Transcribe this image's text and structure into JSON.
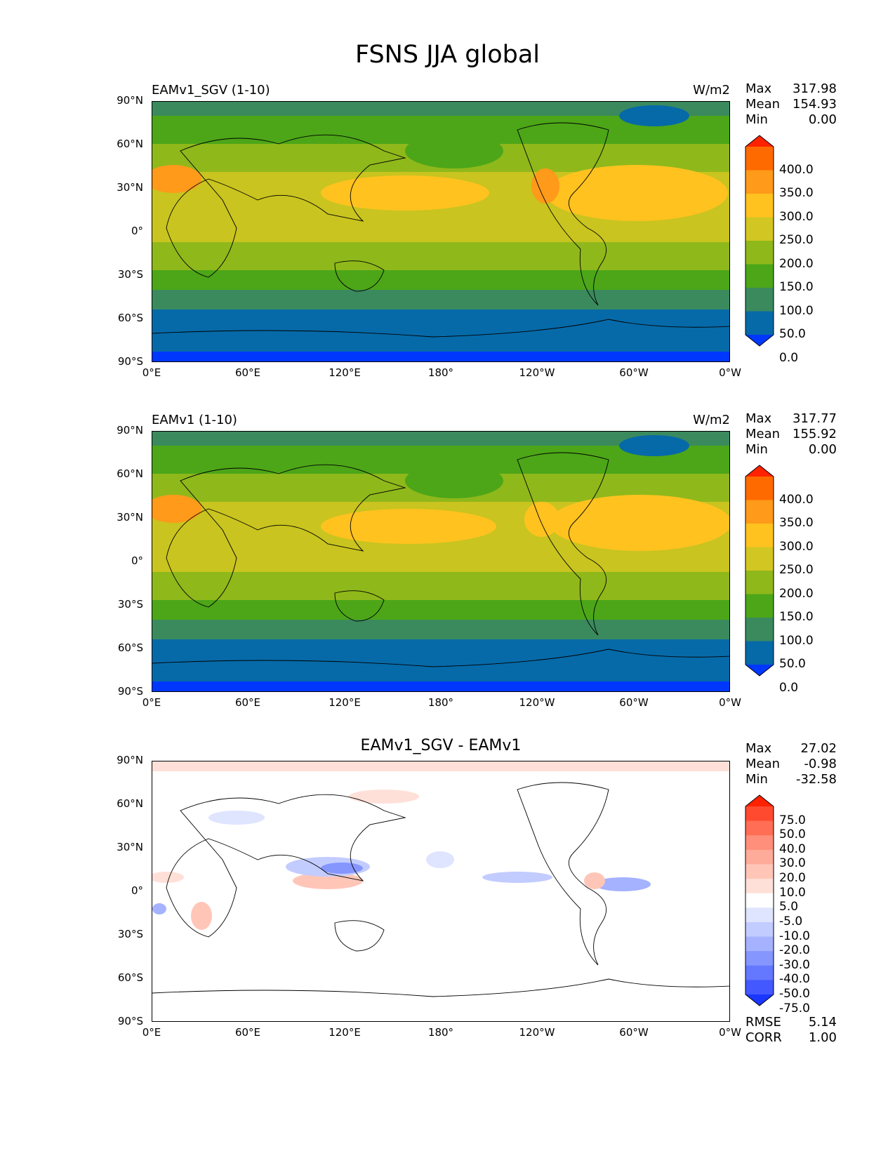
{
  "figure": {
    "title": "FSNS JJA global"
  },
  "axes": {
    "yticks": [
      "90°N",
      "60°N",
      "30°N",
      "0°",
      "30°S",
      "60°S",
      "90°S"
    ],
    "xticks": [
      "0°E",
      "60°E",
      "120°E",
      "180°",
      "120°W",
      "60°W",
      "0°W"
    ]
  },
  "panels": [
    {
      "title": "EAMv1_SGV (1-10)",
      "units": "W/m2",
      "stats": [
        {
          "label": "Max",
          "value": "317.98"
        },
        {
          "label": "Mean",
          "value": "154.93"
        },
        {
          "label": "Min",
          "value": "0.00"
        }
      ],
      "colorbar": {
        "labels": [
          "400.0",
          "350.0",
          "300.0",
          "250.0",
          "200.0",
          "150.0",
          "100.0",
          "50.0",
          "0.0"
        ],
        "colors": [
          "#ff2200",
          "#ff6a00",
          "#ff9a1a",
          "#ffc21f",
          "#d2c622",
          "#8fb81b",
          "#4ca618",
          "#3a8a5e",
          "#066aa8",
          "#0037ff"
        ]
      },
      "bottom_stats": []
    },
    {
      "title": "EAMv1 (1-10)",
      "units": "W/m2",
      "stats": [
        {
          "label": "Max",
          "value": "317.77"
        },
        {
          "label": "Mean",
          "value": "155.92"
        },
        {
          "label": "Min",
          "value": "0.00"
        }
      ],
      "colorbar": {
        "labels": [
          "400.0",
          "350.0",
          "300.0",
          "250.0",
          "200.0",
          "150.0",
          "100.0",
          "50.0",
          "0.0"
        ],
        "colors": [
          "#ff2200",
          "#ff6a00",
          "#ff9a1a",
          "#ffc21f",
          "#d2c622",
          "#8fb81b",
          "#4ca618",
          "#3a8a5e",
          "#066aa8",
          "#0037ff"
        ]
      },
      "bottom_stats": []
    },
    {
      "title": "EAMv1_SGV - EAMv1",
      "units": "",
      "stats": [
        {
          "label": "Max",
          "value": "27.02"
        },
        {
          "label": "Mean",
          "value": "-0.98"
        },
        {
          "label": "Min",
          "value": "-32.58"
        }
      ],
      "colorbar": {
        "labels": [
          "75.0",
          "50.0",
          "40.0",
          "30.0",
          "20.0",
          "10.0",
          "5.0",
          "-5.0",
          "-10.0",
          "-20.0",
          "-30.0",
          "-40.0",
          "-50.0",
          "-75.0"
        ],
        "colors": [
          "#ff2200",
          "#ff4a30",
          "#ff6e55",
          "#ff8f7a",
          "#ffab9a",
          "#ffc6b8",
          "#ffe0d8",
          "#ffffff",
          "#dfe4ff",
          "#c3ccff",
          "#a4b2ff",
          "#8596ff",
          "#6478ff",
          "#4458ff",
          "#1a36ff"
        ]
      },
      "bottom_stats": [
        {
          "label": "RMSE",
          "value": "5.14"
        },
        {
          "label": "CORR",
          "value": "1.00"
        }
      ]
    }
  ]
}
